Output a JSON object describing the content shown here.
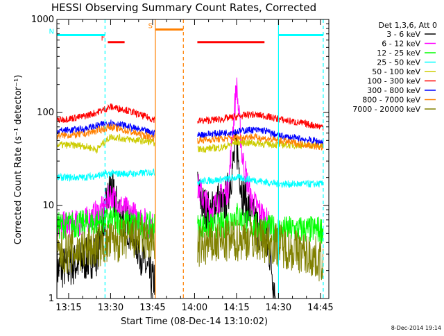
{
  "chart_data": {
    "type": "line",
    "title": "HESSI Observing Summary Count Rates, Corrected",
    "xlabel": "Start Time (08-Dec-14 13:10:02)",
    "ylabel": "Corrected Count Rate (s⁻¹ detector⁻¹)",
    "yscale": "log",
    "ylim": [
      1,
      1000
    ],
    "xlim_minutes": [
      13.18,
      14.8
    ],
    "x_ticks": [
      "13:15",
      "13:30",
      "13:45",
      "14:00",
      "14:15",
      "14:30",
      "14:45"
    ],
    "y_ticks": [
      "1",
      "10",
      "100",
      "1000"
    ],
    "legend_header": "Det 1,3,6, Att 0",
    "timestamp": "8-Dec-2014 19:14",
    "legend_position": "right",
    "series": [
      {
        "name": "3 - 6 keV",
        "color": "#000000",
        "points": [
          [
            "13:10",
            2.0
          ],
          [
            "13:20",
            2.5
          ],
          [
            "13:25",
            3.0
          ],
          [
            "13:28",
            8
          ],
          [
            "13:30",
            16
          ],
          [
            "13:32",
            10
          ],
          [
            "13:35",
            7
          ],
          [
            "13:38",
            5
          ],
          [
            "13:41",
            3
          ],
          [
            "13:43",
            2
          ],
          [
            "13:45",
            1.5
          ],
          [
            "14:00",
            18
          ],
          [
            "14:03",
            10
          ],
          [
            "14:06",
            8
          ],
          [
            "14:08",
            12
          ],
          [
            "14:10",
            9
          ],
          [
            "14:12",
            14
          ],
          [
            "14:15",
            45
          ],
          [
            "14:17",
            14
          ],
          [
            "14:20",
            8
          ],
          [
            "14:24",
            5
          ],
          [
            "14:27",
            3
          ],
          [
            "14:29",
            1
          ]
        ]
      },
      {
        "name": "6 - 12 keV",
        "color": "#ff00ff",
        "points": [
          [
            "13:10",
            6
          ],
          [
            "13:20",
            6.5
          ],
          [
            "13:27",
            9
          ],
          [
            "13:30",
            13
          ],
          [
            "13:33",
            10
          ],
          [
            "13:38",
            8
          ],
          [
            "13:45",
            6
          ],
          [
            "14:00",
            20
          ],
          [
            "14:03",
            12
          ],
          [
            "14:06",
            9
          ],
          [
            "14:09",
            12
          ],
          [
            "14:12",
            15
          ],
          [
            "14:15",
            200
          ],
          [
            "14:17",
            35
          ],
          [
            "14:20",
            12
          ],
          [
            "14:23",
            9
          ],
          [
            "14:27",
            6
          ]
        ]
      },
      {
        "name": "12 - 25 keV",
        "color": "#00ff00",
        "points": [
          [
            "13:10",
            6
          ],
          [
            "13:25",
            6.5
          ],
          [
            "13:30",
            7
          ],
          [
            "13:35",
            6.5
          ],
          [
            "13:45",
            6
          ],
          [
            "14:00",
            6
          ],
          [
            "14:10",
            6
          ],
          [
            "14:15",
            8
          ],
          [
            "14:20",
            6
          ],
          [
            "14:30",
            5.5
          ],
          [
            "14:46",
            5.5
          ]
        ]
      },
      {
        "name": "25 - 50 keV",
        "color": "#00ffff",
        "points": [
          [
            "13:10",
            20
          ],
          [
            "13:20",
            20
          ],
          [
            "13:30",
            22
          ],
          [
            "13:40",
            22
          ],
          [
            "13:45",
            23
          ],
          [
            "14:00",
            18
          ],
          [
            "14:10",
            19
          ],
          [
            "14:15",
            20
          ],
          [
            "14:20",
            19
          ],
          [
            "14:30",
            17
          ],
          [
            "14:46",
            17
          ]
        ]
      },
      {
        "name": "50 - 100 keV",
        "color": "#cccc00",
        "points": [
          [
            "13:10",
            45
          ],
          [
            "13:20",
            44
          ],
          [
            "13:25",
            40
          ],
          [
            "13:30",
            55
          ],
          [
            "13:35",
            52
          ],
          [
            "13:45",
            48
          ],
          [
            "14:00",
            40
          ],
          [
            "14:10",
            42
          ],
          [
            "14:15",
            48
          ],
          [
            "14:20",
            47
          ],
          [
            "14:30",
            45
          ],
          [
            "14:46",
            44
          ]
        ]
      },
      {
        "name": "100 - 300 keV",
        "color": "#ff0000",
        "points": [
          [
            "13:10",
            82
          ],
          [
            "13:20",
            90
          ],
          [
            "13:25",
            100
          ],
          [
            "13:30",
            115
          ],
          [
            "13:35",
            108
          ],
          [
            "13:40",
            95
          ],
          [
            "13:45",
            85
          ],
          [
            "14:00",
            80
          ],
          [
            "14:10",
            85
          ],
          [
            "14:20",
            95
          ],
          [
            "14:25",
            92
          ],
          [
            "14:30",
            85
          ],
          [
            "14:40",
            75
          ],
          [
            "14:46",
            70
          ]
        ]
      },
      {
        "name": "300 - 800 keV",
        "color": "#0000ff",
        "points": [
          [
            "13:10",
            63
          ],
          [
            "13:20",
            66
          ],
          [
            "13:30",
            78
          ],
          [
            "13:35",
            72
          ],
          [
            "13:45",
            60
          ],
          [
            "14:00",
            57
          ],
          [
            "14:10",
            60
          ],
          [
            "14:20",
            65
          ],
          [
            "14:25",
            64
          ],
          [
            "14:30",
            56
          ],
          [
            "14:46",
            48
          ]
        ]
      },
      {
        "name": "800 - 7000 keV",
        "color": "#ff8000",
        "points": [
          [
            "13:10",
            56
          ],
          [
            "13:20",
            58
          ],
          [
            "13:30",
            70
          ],
          [
            "13:35",
            64
          ],
          [
            "13:45",
            54
          ],
          [
            "14:00",
            50
          ],
          [
            "14:10",
            52
          ],
          [
            "14:20",
            55
          ],
          [
            "14:30",
            50
          ],
          [
            "14:40",
            45
          ],
          [
            "14:46",
            42
          ]
        ]
      },
      {
        "name": "7000 - 20000 keV",
        "color": "#808000",
        "points": [
          [
            "13:10",
            3
          ],
          [
            "13:20",
            3.3
          ],
          [
            "13:30",
            4
          ],
          [
            "13:40",
            4.5
          ],
          [
            "13:45",
            4
          ],
          [
            "14:00",
            3.5
          ],
          [
            "14:10",
            4
          ],
          [
            "14:20",
            4.5
          ],
          [
            "14:30",
            3.8
          ],
          [
            "14:40",
            3
          ],
          [
            "14:46",
            2.5
          ]
        ]
      }
    ],
    "flags": [
      {
        "label": "F",
        "color": "#ff0000",
        "start": "13:29",
        "end": "13:35",
        "y": 570
      },
      {
        "label": "N",
        "color": "#00ffff",
        "start": "13:10",
        "end": "13:28",
        "y": 680
      },
      {
        "label": "S",
        "color": "#ff8000",
        "start": "13:46",
        "end": "13:56",
        "y": 780
      },
      {
        "label": "",
        "color": "#ff0000",
        "start": "14:01",
        "end": "14:25",
        "y": 570
      },
      {
        "label": "",
        "color": "#00ffff",
        "start": "14:30",
        "end": "14:46",
        "y": 680
      }
    ],
    "vlines": [
      {
        "t": "13:28",
        "color": "#00ffff",
        "style": "dashed"
      },
      {
        "t": "13:46",
        "color": "#ff8000",
        "style": "solid"
      },
      {
        "t": "13:56",
        "color": "#ff8000",
        "style": "dashed"
      },
      {
        "t": "14:30",
        "color": "#00ffff",
        "style": "solid"
      },
      {
        "t": "14:46",
        "color": "#00ffff",
        "style": "dashed"
      }
    ]
  }
}
